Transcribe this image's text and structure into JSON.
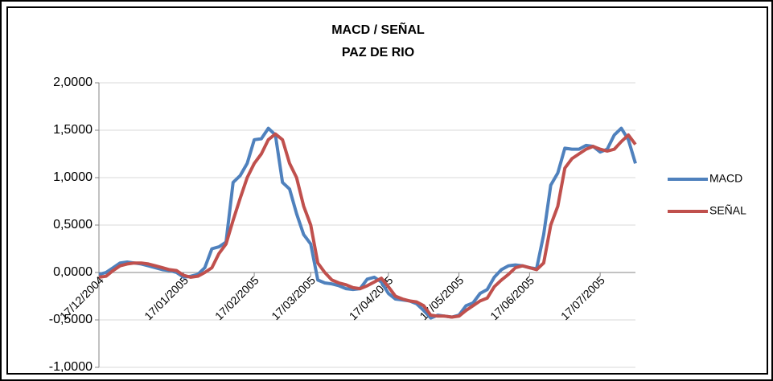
{
  "chart_data": {
    "type": "line",
    "title": "MACD / SEÑAL",
    "subtitle": "PAZ DE RIO",
    "categories": [
      "17/12/2004",
      null,
      null,
      null,
      null,
      null,
      null,
      null,
      null,
      null,
      null,
      null,
      "17/01/2005",
      null,
      null,
      null,
      null,
      null,
      null,
      null,
      null,
      null,
      "17/02/2005",
      null,
      null,
      null,
      null,
      null,
      null,
      null,
      "17/03/2005",
      null,
      null,
      null,
      null,
      null,
      null,
      null,
      null,
      null,
      null,
      "17/04/2005",
      null,
      null,
      null,
      null,
      null,
      null,
      null,
      null,
      null,
      "17/05/2005",
      null,
      null,
      null,
      null,
      null,
      null,
      null,
      null,
      null,
      "17/06/2005",
      null,
      null,
      null,
      null,
      null,
      null,
      null,
      null,
      null,
      "17/07/2005",
      null,
      null,
      null,
      null,
      null
    ],
    "series": [
      {
        "name": "MACD",
        "color": "#4f81bd",
        "values": [
          -0.02,
          0.0,
          0.05,
          0.1,
          0.11,
          0.1,
          0.09,
          0.07,
          0.05,
          0.03,
          0.02,
          0.0,
          -0.05,
          -0.04,
          -0.02,
          0.05,
          0.25,
          0.27,
          0.32,
          0.95,
          1.02,
          1.15,
          1.4,
          1.41,
          1.52,
          1.45,
          0.95,
          0.88,
          0.62,
          0.4,
          0.3,
          -0.08,
          -0.11,
          -0.12,
          -0.14,
          -0.17,
          -0.18,
          -0.17,
          -0.07,
          -0.05,
          -0.1,
          -0.22,
          -0.28,
          -0.29,
          -0.3,
          -0.33,
          -0.4,
          -0.48,
          -0.45,
          -0.46,
          -0.47,
          -0.45,
          -0.35,
          -0.32,
          -0.22,
          -0.18,
          -0.05,
          0.03,
          0.07,
          0.08,
          0.07,
          0.05,
          0.04,
          0.4,
          0.92,
          1.05,
          1.31,
          1.3,
          1.3,
          1.34,
          1.33,
          1.27,
          1.3,
          1.45,
          1.52,
          1.4,
          1.15
        ]
      },
      {
        "name": "SEÑAL",
        "color": "#c0504d",
        "values": [
          -0.05,
          -0.04,
          0.02,
          0.07,
          0.09,
          0.1,
          0.1,
          0.09,
          0.07,
          0.05,
          0.03,
          0.02,
          -0.03,
          -0.05,
          -0.04,
          0.0,
          0.05,
          0.2,
          0.3,
          0.55,
          0.78,
          1.0,
          1.15,
          1.25,
          1.4,
          1.46,
          1.4,
          1.15,
          1.0,
          0.7,
          0.5,
          0.1,
          0.0,
          -0.08,
          -0.11,
          -0.13,
          -0.16,
          -0.17,
          -0.14,
          -0.1,
          -0.06,
          -0.15,
          -0.25,
          -0.28,
          -0.3,
          -0.31,
          -0.35,
          -0.45,
          -0.46,
          -0.46,
          -0.47,
          -0.46,
          -0.4,
          -0.35,
          -0.3,
          -0.27,
          -0.15,
          -0.08,
          -0.02,
          0.05,
          0.07,
          0.05,
          0.03,
          0.1,
          0.5,
          0.7,
          1.1,
          1.2,
          1.25,
          1.3,
          1.33,
          1.3,
          1.28,
          1.3,
          1.38,
          1.45,
          1.35
        ]
      }
    ],
    "ylim": [
      -1,
      2
    ],
    "yticks": [
      {
        "value": -1,
        "label": "-1,0000"
      },
      {
        "value": -0.5,
        "label": "-0,5000"
      },
      {
        "value": 0,
        "label": "0,0000"
      },
      {
        "value": 0.5,
        "label": "0,5000"
      },
      {
        "value": 1,
        "label": "1,0000"
      },
      {
        "value": 1.5,
        "label": "1,5000"
      },
      {
        "value": 2,
        "label": "2,0000"
      }
    ],
    "grid": true,
    "legend": "right"
  }
}
